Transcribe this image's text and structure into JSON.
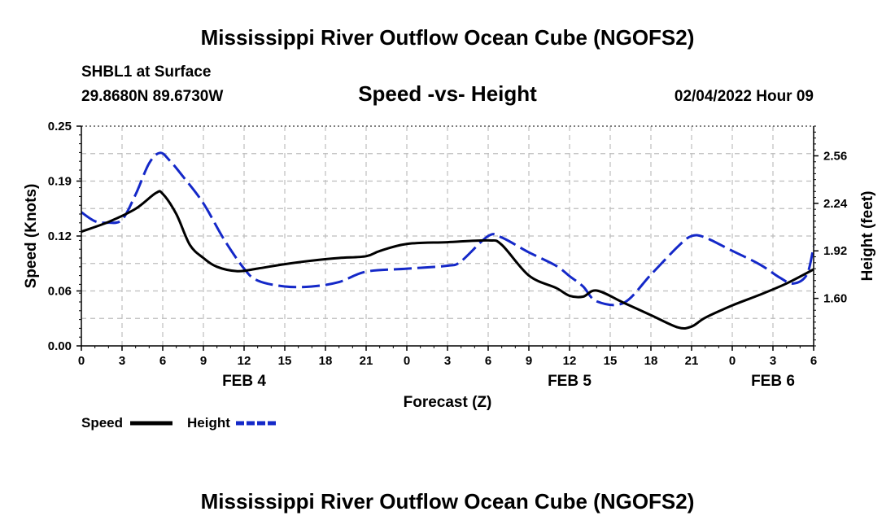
{
  "chart_data": {
    "type": "line",
    "title": "Mississippi River Outflow Ocean Cube (NGOFS2)",
    "footer_title": "Mississippi River Outflow Ocean Cube (NGOFS2)",
    "station": "SHBL1 at Surface",
    "location": "29.8680N  89.6730W",
    "subtitle": "Speed -vs- Height",
    "datetime": "02/04/2022 Hour 09",
    "xlabel": "Forecast (Z)",
    "ylabel_left": "Speed (Knots)",
    "ylabel_right": "Height (feet)",
    "x_range_hours": [
      0,
      54
    ],
    "x_tick_labels": [
      "0",
      "3",
      "6",
      "9",
      "12",
      "15",
      "18",
      "21",
      "0",
      "3",
      "6",
      "9",
      "12",
      "15",
      "18",
      "21",
      "0",
      "3",
      "6"
    ],
    "date_labels": [
      {
        "label": "FEB 4",
        "hour": 12
      },
      {
        "label": "FEB 5",
        "hour": 36
      },
      {
        "label": "FEB 6",
        "hour": 51
      }
    ],
    "ylim_left": [
      0,
      0.25
    ],
    "y_ticks_left": [
      "0.00",
      "0.06",
      "0.12",
      "0.19",
      "0.25"
    ],
    "ylim_right": [
      1.28,
      2.76
    ],
    "y_ticks_right": [
      {
        "label": "1.60",
        "value": 1.6
      },
      {
        "label": "1.92",
        "value": 1.92
      },
      {
        "label": "2.24",
        "value": 2.24
      },
      {
        "label": "2.56",
        "value": 2.56
      }
    ],
    "grid": true,
    "legend": {
      "position": "bottom-left",
      "speed_label": "Speed",
      "height_label": "Height"
    },
    "series": [
      {
        "name": "Speed",
        "axis": "left",
        "color": "#000000",
        "style": "solid",
        "x": [
          0,
          2,
          4,
          5.5,
          6,
          7,
          8,
          9,
          10,
          11.5,
          13,
          15,
          17,
          19,
          21,
          22,
          24,
          27,
          30,
          31,
          33,
          35,
          36,
          37,
          38,
          40,
          42,
          44,
          45,
          46,
          48,
          50,
          52,
          54
        ],
        "y": [
          0.13,
          0.141,
          0.156,
          0.174,
          0.173,
          0.15,
          0.115,
          0.1,
          0.09,
          0.085,
          0.088,
          0.093,
          0.097,
          0.1,
          0.102,
          0.108,
          0.116,
          0.118,
          0.12,
          0.115,
          0.08,
          0.066,
          0.057,
          0.056,
          0.063,
          0.049,
          0.035,
          0.021,
          0.022,
          0.032,
          0.046,
          0.058,
          0.071,
          0.087
        ]
      },
      {
        "name": "Height",
        "axis": "right",
        "color": "#1428c8",
        "style": "dashed",
        "x": [
          0,
          1,
          2,
          3,
          4,
          5,
          5.8,
          6.5,
          7.5,
          9,
          10.5,
          12,
          13,
          15,
          17,
          19,
          21,
          24,
          27,
          28,
          30,
          31,
          33,
          35,
          36,
          37,
          38,
          40,
          42,
          44,
          45,
          46,
          48,
          50,
          51.5,
          52.5,
          53.5,
          54
        ],
        "y": [
          2.18,
          2.12,
          2.11,
          2.13,
          2.3,
          2.51,
          2.58,
          2.53,
          2.42,
          2.24,
          2.0,
          1.8,
          1.72,
          1.68,
          1.68,
          1.71,
          1.78,
          1.8,
          1.82,
          1.85,
          2.02,
          2.01,
          1.91,
          1.82,
          1.75,
          1.68,
          1.58,
          1.57,
          1.76,
          1.95,
          2.02,
          2.01,
          1.92,
          1.83,
          1.74,
          1.7,
          1.76,
          1.95
        ]
      }
    ]
  }
}
